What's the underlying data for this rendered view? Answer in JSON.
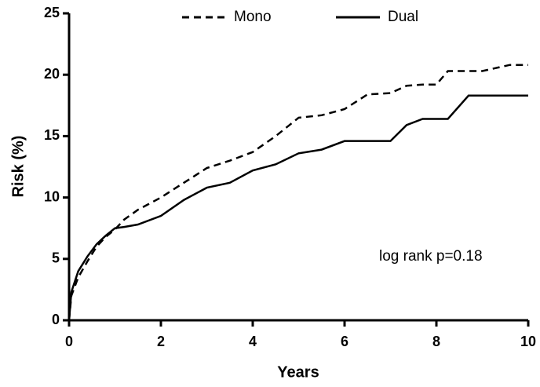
{
  "chart_data": {
    "type": "line",
    "x_label": "Years",
    "y_label": "Risk (%)",
    "annotation": "log rank p=0.18",
    "legend": "top",
    "grid": false,
    "x": [
      0,
      0.05,
      0.2,
      0.4,
      0.6,
      0.8,
      1,
      1.2,
      1.5,
      2,
      2.5,
      3,
      3.5,
      4,
      4.5,
      5,
      5.5,
      6,
      6.5,
      7,
      7.35,
      7.7,
      8,
      8.25,
      8.7,
      9,
      9.6,
      10
    ],
    "series": [
      {
        "name": "Mono",
        "color": "#000000",
        "dash": "dashed",
        "values": [
          0,
          2,
          3.5,
          4.8,
          6,
          6.8,
          7.4,
          8.2,
          9,
          10,
          11.2,
          12.4,
          13,
          13.7,
          15,
          16.5,
          16.7,
          17.2,
          18.4,
          18.5,
          19.1,
          19.2,
          19.2,
          20.3,
          20.3,
          20.3,
          20.8,
          20.8
        ]
      },
      {
        "name": "Dual",
        "color": "#000000",
        "dash": "solid",
        "values": [
          0,
          2.3,
          4,
          5.2,
          6.2,
          6.9,
          7.5,
          7.6,
          7.8,
          8.5,
          9.8,
          10.8,
          11.2,
          12.2,
          12.7,
          13.6,
          13.9,
          14.6,
          14.6,
          14.6,
          15.9,
          16.4,
          16.4,
          16.4,
          18.3,
          18.3,
          18.3,
          18.3
        ]
      }
    ],
    "xlim": [
      0,
      10
    ],
    "xticks": [
      0,
      2,
      4,
      6,
      8,
      10
    ],
    "ylim": [
      0,
      25
    ],
    "yticks": [
      0,
      5,
      10,
      15,
      20,
      25
    ]
  }
}
